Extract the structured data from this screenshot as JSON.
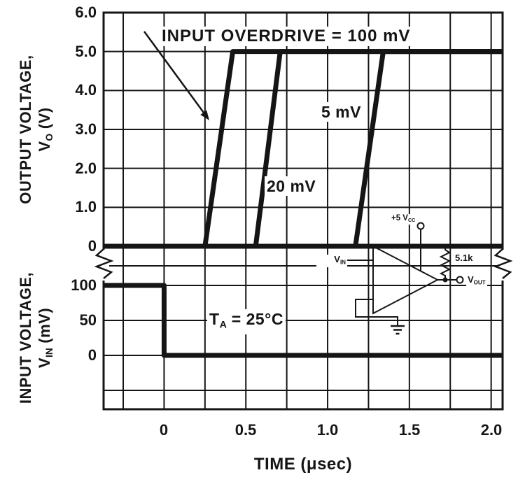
{
  "figure": {
    "background": "#ffffff",
    "ink": "#151515"
  },
  "chart_data": {
    "type": "line",
    "xlabel": "TIME (μsec)",
    "xlim": [
      -0.37,
      2.07
    ],
    "x_grid_step": 0.25,
    "x_ticks": [
      0,
      0.5,
      1.0,
      1.5,
      2.0
    ],
    "x_tick_labels": [
      "0",
      "0.5",
      "1.0",
      "1.5",
      "2.0"
    ],
    "axis_break": true,
    "top_plot": {
      "ylabel_line1": "OUTPUT VOLTAGE,",
      "ylabel_line2": {
        "base": "V",
        "sub": "O",
        "rest": " (V)"
      },
      "ylim": [
        0,
        6.0
      ],
      "y_ticks": [
        6.0,
        5.0,
        4.0,
        3.0,
        2.0,
        1.0,
        0
      ],
      "y_tick_labels": [
        "6.0",
        "5.0",
        "4.0",
        "3.0",
        "2.0",
        "1.0",
        "0"
      ],
      "series": [
        {
          "name": "zero-baseline",
          "points": [
            [
              -0.37,
              0
            ],
            [
              2.07,
              0
            ]
          ]
        },
        {
          "name": "overdrive-100mV",
          "overdrive_mV": 100,
          "points": [
            [
              -0.37,
              0
            ],
            [
              0.25,
              0
            ],
            [
              0.42,
              5.0
            ],
            [
              2.07,
              5.0
            ]
          ]
        },
        {
          "name": "overdrive-20mV",
          "overdrive_mV": 20,
          "points": [
            [
              -0.37,
              0
            ],
            [
              0.56,
              0
            ],
            [
              0.71,
              5.0
            ],
            [
              2.07,
              5.0
            ]
          ]
        },
        {
          "name": "overdrive-5mV",
          "overdrive_mV": 5,
          "points": [
            [
              -0.37,
              0
            ],
            [
              1.17,
              0
            ],
            [
              1.34,
              5.0
            ],
            [
              2.07,
              5.0
            ]
          ]
        }
      ]
    },
    "bottom_plot": {
      "ylabel_line1": "INPUT VOLTAGE,",
      "ylabel_line2": {
        "base": "V",
        "sub": "IN",
        "rest": " (mV)"
      },
      "y_ticks_mV": [
        100,
        50,
        0
      ],
      "y_tick_labels": [
        "100",
        "50",
        "0"
      ],
      "grid_mV": [
        100,
        50,
        0,
        -50
      ],
      "series": [
        {
          "name": "input-step",
          "points_mV": [
            [
              -0.37,
              100
            ],
            [
              0,
              100
            ],
            [
              0,
              0
            ],
            [
              2.07,
              0
            ]
          ]
        }
      ]
    },
    "annotations": {
      "overdrive_label": "INPUT OVERDRIVE = 100 mV",
      "label_5mV": "5 mV",
      "label_20mV": "20 mV",
      "temperature": {
        "base": "T",
        "sub": "A",
        "rest": " = 25°C"
      }
    },
    "circuit": {
      "supply": {
        "base": "+5 V",
        "sub": "CC"
      },
      "resistor": "5.1k",
      "vin": {
        "base": "V",
        "sub": "IN"
      },
      "vout": {
        "base": "V",
        "sub": "OUT"
      }
    }
  }
}
